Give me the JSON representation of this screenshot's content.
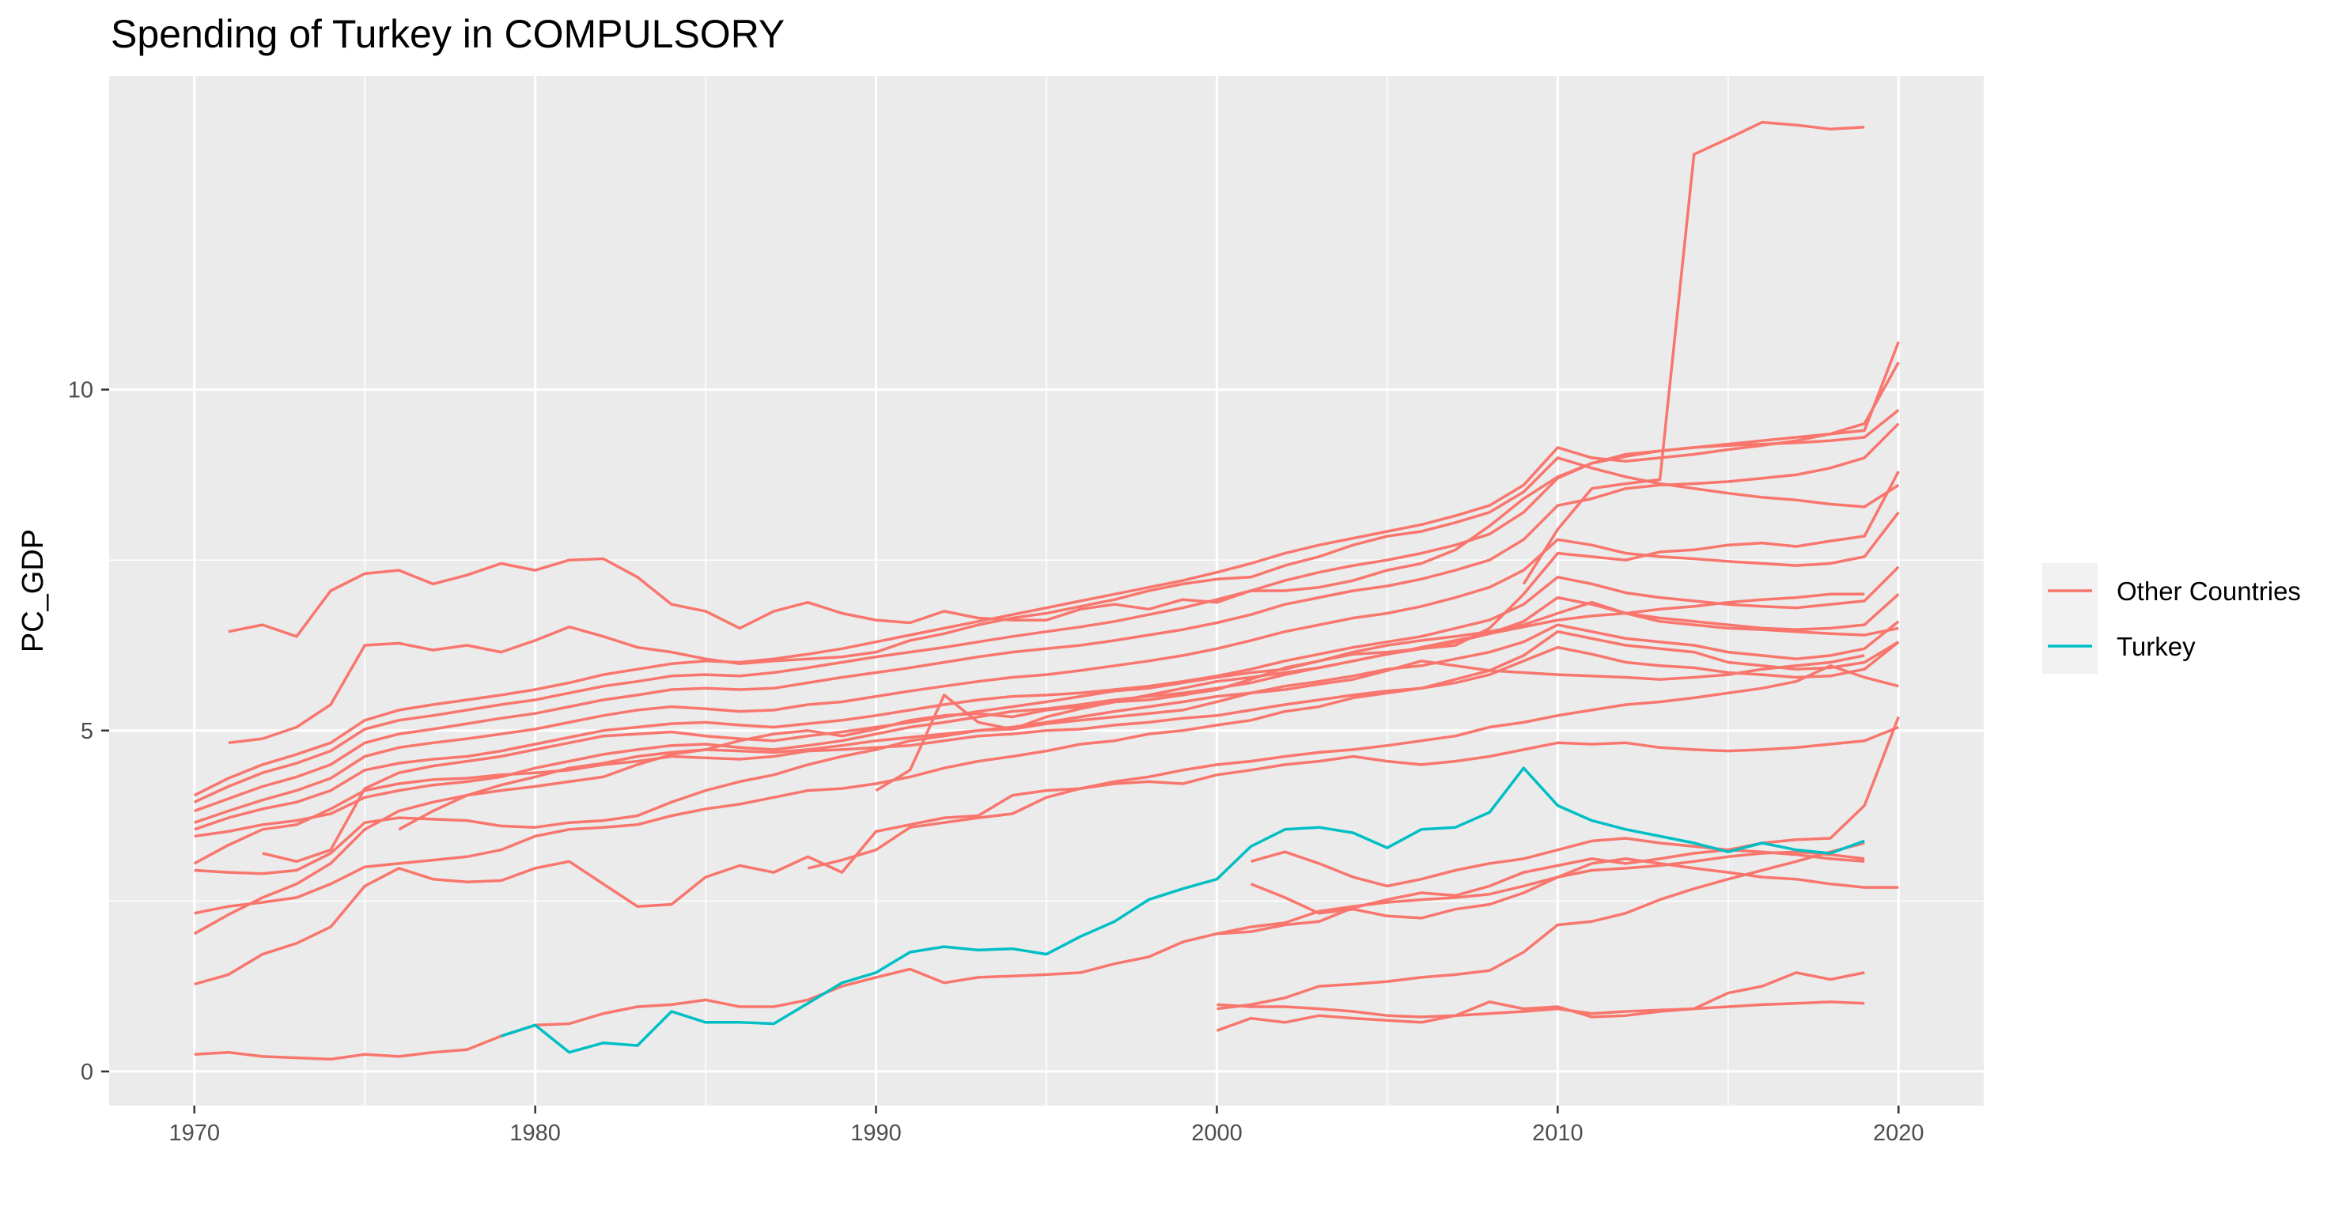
{
  "colors": {
    "other": "#F8766D",
    "turkey": "#00BFC4",
    "panel": "#EBEBEB",
    "grid_major": "#FFFFFF"
  },
  "chart_data": {
    "type": "line",
    "title": "Spending of Turkey in COMPULSORY",
    "xlabel": "",
    "ylabel": "PC_GDP",
    "xlim": [
      1967.5,
      2022.5
    ],
    "ylim": [
      -0.5,
      14.6
    ],
    "x_ticks": [
      1970,
      1980,
      1990,
      2000,
      2010,
      2020
    ],
    "y_ticks": [
      0,
      5,
      10
    ],
    "grid": true,
    "legend_position": "right",
    "legend": [
      {
        "label": "Other Countries",
        "color": "#F8766D"
      },
      {
        "label": "Turkey",
        "color": "#00BFC4"
      }
    ],
    "turkey": {
      "name": "Turkey",
      "x": [
        1979,
        1980,
        1981,
        1982,
        1983,
        1984,
        1985,
        1986,
        1987,
        1988,
        1989,
        1990,
        1991,
        1992,
        1993,
        1994,
        1995,
        1996,
        1997,
        1998,
        1999,
        2000,
        2001,
        2002,
        2003,
        2004,
        2005,
        2006,
        2007,
        2008,
        2009,
        2010,
        2011,
        2012,
        2013,
        2014,
        2015,
        2016,
        2017,
        2018,
        2019
      ],
      "values": [
        0.52,
        0.68,
        0.28,
        0.42,
        0.38,
        0.88,
        0.72,
        0.72,
        0.7,
        1.0,
        1.3,
        1.45,
        1.75,
        1.83,
        1.78,
        1.8,
        1.72,
        1.98,
        2.2,
        2.52,
        2.68,
        2.82,
        3.3,
        3.55,
        3.58,
        3.5,
        3.28,
        3.55,
        3.58,
        3.8,
        4.45,
        3.9,
        3.68,
        3.55,
        3.45,
        3.35,
        3.22,
        3.35,
        3.25,
        3.2,
        3.38
      ]
    },
    "other_countries": [
      {
        "start": 1970,
        "values": [
          0.25,
          0.28,
          0.22,
          0.2,
          0.18,
          0.25,
          0.22,
          0.28,
          0.32,
          0.52,
          0.68,
          0.7,
          0.85,
          0.95,
          0.98,
          1.05,
          0.95,
          0.95,
          1.05,
          1.25,
          1.38,
          1.5,
          1.3,
          1.38,
          1.4,
          1.42,
          1.45,
          1.58,
          1.68,
          1.9,
          2.02,
          2.05,
          2.15,
          2.2,
          2.4,
          2.52,
          2.62,
          2.58,
          2.72,
          2.92,
          3.02,
          3.12,
          3.05,
          3.12,
          3.2,
          3.25,
          3.35,
          3.4,
          3.42,
          3.9,
          5.2
        ]
      },
      {
        "start": 1970,
        "values": [
          1.28,
          1.42,
          1.72,
          1.88,
          2.12,
          2.72,
          2.98,
          2.82,
          2.78,
          2.8,
          2.98,
          3.08,
          2.75,
          2.42,
          2.45,
          2.85,
          3.02,
          2.92,
          3.15,
          2.92,
          3.52,
          3.62,
          3.72,
          3.75,
          4.05,
          4.12,
          4.15,
          4.22,
          4.25,
          4.22,
          4.35,
          4.42,
          4.5,
          4.55,
          4.62,
          4.55,
          4.5,
          4.55,
          4.62,
          4.72,
          4.82,
          4.8,
          4.82,
          4.75,
          4.72,
          4.7,
          4.72,
          4.75,
          4.8,
          4.85,
          5.05
        ]
      },
      {
        "start": 1970,
        "values": [
          2.02,
          2.3,
          2.55,
          2.75,
          3.05,
          3.55,
          3.82,
          3.95,
          4.05,
          4.12,
          4.18,
          4.25,
          4.32,
          4.5,
          4.65,
          4.72,
          4.85,
          4.95,
          5.0,
          4.92,
          5.02,
          5.15,
          5.22,
          5.25,
          5.2,
          5.3,
          5.35,
          5.42,
          5.45,
          5.52,
          5.6,
          5.75,
          5.92,
          6.02,
          6.12,
          6.15,
          6.2,
          6.25,
          6.5,
          7.0,
          7.6,
          7.55,
          7.5,
          7.62,
          7.65,
          7.72,
          7.75,
          7.7,
          7.78,
          7.85,
          8.8
        ]
      },
      {
        "start": 1970,
        "values": [
          2.32,
          2.42,
          2.48,
          2.55,
          2.75,
          3.0,
          3.05,
          3.1,
          3.15,
          3.25,
          3.45,
          3.55,
          3.58,
          3.62,
          3.75,
          3.85,
          3.92,
          4.02,
          4.12,
          4.15,
          4.22,
          4.32,
          4.45,
          4.55,
          4.62,
          4.7,
          4.8,
          4.85,
          4.95,
          5.0,
          5.08,
          5.15,
          5.28,
          5.35,
          5.48,
          5.55,
          5.62,
          5.75,
          5.88,
          6.1,
          6.45,
          6.35,
          6.25,
          6.2,
          6.15,
          6.0,
          5.95,
          5.9,
          5.92,
          6.0,
          6.3
        ]
      },
      {
        "start": 1970,
        "values": [
          2.95,
          2.92,
          2.9,
          2.95,
          3.2,
          3.65,
          3.72,
          3.7,
          3.68,
          3.6,
          3.58,
          3.65,
          3.68,
          3.75,
          3.95,
          4.12,
          4.25,
          4.35,
          4.5,
          4.62,
          4.72,
          4.85,
          4.92,
          5.0,
          5.02,
          5.1,
          5.15,
          5.2,
          5.25,
          5.3,
          5.42,
          5.55,
          5.65,
          5.72,
          5.8,
          5.9,
          5.95,
          6.05,
          6.15,
          6.3,
          6.55,
          6.45,
          6.35,
          6.3,
          6.25,
          6.15,
          6.1,
          6.05,
          6.1,
          6.2,
          6.6
        ]
      },
      {
        "start": 1970,
        "values": [
          3.05,
          3.32,
          3.55,
          3.62,
          3.85,
          4.12,
          4.22,
          4.28,
          4.3,
          4.35,
          4.38,
          4.42,
          4.5,
          4.55,
          4.62,
          4.6,
          4.58,
          4.62,
          4.7,
          4.72,
          4.75,
          4.78,
          4.85,
          4.92,
          4.95,
          5.0,
          5.02,
          5.08,
          5.12,
          5.18,
          5.22,
          5.3,
          5.38,
          5.45,
          5.52,
          5.58,
          5.62,
          5.7,
          5.82,
          6.02,
          6.22,
          6.12,
          6.0,
          5.95,
          5.92,
          5.85,
          5.82,
          5.78,
          5.8,
          5.9,
          6.3
        ]
      },
      {
        "start": 1970,
        "values": [
          3.45,
          3.52,
          3.62,
          3.68,
          3.78,
          4.02,
          4.12,
          4.2,
          4.25,
          4.32,
          4.45,
          4.55,
          4.65,
          4.72,
          4.78,
          4.8,
          4.75,
          4.72,
          4.78,
          4.85,
          4.95,
          5.05,
          5.12,
          5.2,
          5.28,
          5.32,
          5.38,
          5.45,
          5.5,
          5.55,
          5.62,
          5.7,
          5.82,
          5.92,
          6.02,
          6.12,
          6.2,
          6.3,
          6.42,
          6.6,
          6.95,
          6.85,
          6.72,
          6.65,
          6.6,
          6.55,
          6.5,
          6.48,
          6.5,
          6.55,
          7.0
        ]
      },
      {
        "start": 1970,
        "values": [
          3.55,
          3.72,
          3.85,
          3.95,
          4.12,
          4.42,
          4.52,
          4.58,
          4.62,
          4.7,
          4.8,
          4.9,
          5.0,
          5.05,
          5.1,
          5.12,
          5.08,
          5.05,
          5.1,
          5.15,
          5.22,
          5.3,
          5.38,
          5.45,
          5.5,
          5.52,
          5.55,
          5.6,
          5.65,
          5.72,
          5.8,
          5.9,
          6.02,
          6.12,
          6.22,
          6.3,
          6.38,
          6.5,
          6.62,
          6.85,
          7.25,
          7.15,
          7.02,
          6.95,
          6.9,
          6.85,
          6.82,
          6.8,
          6.85,
          6.9,
          7.4
        ]
      },
      {
        "start": 1970,
        "values": [
          3.65,
          3.82,
          3.98,
          4.12,
          4.3,
          4.62,
          4.75,
          4.82,
          4.88,
          4.95,
          5.02,
          5.12,
          5.22,
          5.3,
          5.35,
          5.32,
          5.28,
          5.3,
          5.38,
          5.42,
          5.5,
          5.58,
          5.65,
          5.72,
          5.78,
          5.82,
          5.88,
          5.95,
          6.02,
          6.1,
          6.2,
          6.32,
          6.45,
          6.55,
          6.65,
          6.72,
          6.82,
          6.95,
          7.1,
          7.35,
          7.8,
          7.72,
          7.6,
          7.55,
          7.52,
          7.48,
          7.45,
          7.42,
          7.45,
          7.55,
          8.2
        ]
      },
      {
        "start": 1970,
        "values": [
          3.82,
          4.0,
          4.18,
          4.32,
          4.5,
          4.82,
          4.95,
          5.02,
          5.1,
          5.18,
          5.25,
          5.35,
          5.45,
          5.52,
          5.6,
          5.62,
          5.6,
          5.62,
          5.7,
          5.78,
          5.85,
          5.92,
          6.0,
          6.08,
          6.15,
          6.2,
          6.25,
          6.32,
          6.4,
          6.48,
          6.58,
          6.7,
          6.85,
          6.95,
          7.05,
          7.12,
          7.22,
          7.35,
          7.5,
          7.8,
          8.3,
          8.4,
          8.55,
          8.6,
          8.62,
          8.65,
          8.7,
          8.75,
          8.85,
          9.0,
          9.5
        ]
      },
      {
        "start": 1970,
        "values": [
          3.95,
          4.18,
          4.38,
          4.52,
          4.7,
          5.02,
          5.15,
          5.22,
          5.3,
          5.38,
          5.45,
          5.55,
          5.65,
          5.72,
          5.8,
          5.82,
          5.8,
          5.85,
          5.92,
          6.0,
          6.08,
          6.15,
          6.22,
          6.3,
          6.38,
          6.45,
          6.52,
          6.6,
          6.7,
          6.8,
          6.92,
          7.05,
          7.2,
          7.32,
          7.42,
          7.5,
          7.6,
          7.72,
          7.88,
          8.2,
          8.7,
          8.92,
          9.05,
          9.1,
          9.15,
          9.18,
          9.2,
          9.22,
          9.25,
          9.3,
          9.7
        ]
      },
      {
        "start": 1970,
        "values": [
          4.05,
          4.3,
          4.5,
          4.65,
          4.82,
          5.15,
          5.3,
          5.38,
          5.45,
          5.52,
          5.6,
          5.7,
          5.82,
          5.9,
          5.98,
          6.02,
          6.0,
          6.05,
          6.12,
          6.2,
          6.3,
          6.4,
          6.5,
          6.6,
          6.7,
          6.8,
          6.9,
          7.0,
          7.1,
          7.2,
          7.32,
          7.45,
          7.6,
          7.72,
          7.82,
          7.92,
          8.02,
          8.15,
          8.3,
          8.6,
          9.15,
          9.0,
          8.95,
          9.0,
          9.05,
          9.12,
          9.18,
          9.25,
          9.35,
          9.5,
          10.4
        ]
      },
      {
        "start": 1971,
        "values": [
          6.45,
          6.55,
          6.38,
          7.05,
          7.3,
          7.35,
          7.15,
          7.28,
          7.45,
          7.35,
          7.5,
          7.52,
          7.25,
          6.85,
          6.75,
          6.5,
          6.75,
          6.88,
          6.72,
          6.62,
          6.58,
          6.75,
          6.65,
          6.62,
          6.62,
          6.78,
          6.85,
          6.78,
          6.92,
          6.88,
          7.05,
          7.05,
          7.1,
          7.2,
          7.35,
          7.45,
          7.65,
          8.0,
          8.4,
          8.72,
          8.92,
          9.02,
          9.1,
          9.15,
          9.2,
          9.25,
          9.3,
          9.35,
          9.4,
          10.7
        ]
      },
      {
        "start": 1971,
        "values": [
          4.82,
          4.88,
          5.05,
          5.38,
          6.25,
          6.28,
          6.18,
          6.25,
          6.15,
          6.32,
          6.52,
          6.38,
          6.22,
          6.15,
          6.05,
          5.98,
          6.02,
          6.05,
          6.08,
          6.15,
          6.32,
          6.42,
          6.55,
          6.65,
          6.72,
          6.82,
          6.92,
          7.05,
          7.15,
          7.22,
          7.25,
          7.42,
          7.55,
          7.72,
          7.85,
          7.92,
          8.05,
          8.2,
          8.5,
          9.0,
          8.85,
          8.72,
          8.62,
          8.55,
          8.48,
          8.42,
          8.38,
          8.32,
          8.28,
          8.6
        ]
      },
      {
        "start": 1972,
        "values": [
          3.2,
          3.08,
          3.25,
          4.15,
          4.38,
          4.48,
          4.55,
          4.62,
          4.72,
          4.82,
          4.92,
          4.95,
          4.98,
          4.92,
          4.88,
          4.85,
          4.92,
          4.98,
          5.05,
          5.12,
          5.2,
          5.28,
          5.35,
          5.42,
          5.5,
          5.58,
          5.62,
          5.7,
          5.78,
          5.85,
          5.9,
          6.02,
          6.15,
          6.25,
          6.32,
          6.38,
          6.45,
          6.55,
          6.72,
          6.88,
          6.72,
          6.6,
          6.55,
          6.5,
          6.48,
          6.45,
          6.42,
          6.4,
          6.5
        ]
      },
      {
        "start": 1976,
        "values": [
          3.55,
          3.82,
          4.05,
          4.2,
          4.32,
          4.45,
          4.52,
          4.62,
          4.68,
          4.72,
          4.7,
          4.68,
          4.72,
          4.78,
          4.85,
          4.9,
          4.95,
          5.0,
          5.05,
          5.12,
          5.2,
          5.28,
          5.35,
          5.42,
          5.5,
          5.55,
          5.6,
          5.68,
          5.75,
          5.88,
          6.02,
          5.95,
          5.88,
          5.85,
          5.82,
          5.8,
          5.78,
          5.75,
          5.78,
          5.82,
          5.9,
          5.95,
          6.0,
          6.1
        ]
      },
      {
        "start": 1988,
        "values": [
          2.98,
          3.1,
          3.25,
          3.58,
          3.65,
          3.72,
          3.78,
          4.02,
          4.15,
          4.25,
          4.32,
          4.42,
          4.5,
          4.55,
          4.62,
          4.68,
          4.72,
          4.78,
          4.85,
          4.92,
          5.05,
          5.12,
          5.22,
          5.3,
          5.38,
          5.42,
          5.48,
          5.55,
          5.62,
          5.72,
          5.95,
          5.78,
          5.65
        ]
      },
      {
        "start": 1990,
        "values": [
          4.12,
          4.42,
          5.52,
          5.12,
          5.02,
          5.2,
          5.32,
          5.42,
          5.52,
          5.62,
          5.72,
          5.78,
          5.85,
          5.92,
          6.02,
          6.12,
          6.22,
          6.32,
          6.42,
          6.52,
          6.62,
          6.68,
          6.72,
          6.78,
          6.82,
          6.88,
          6.92,
          6.95,
          7.0,
          7.0
        ]
      },
      {
        "start": 2000,
        "values": [
          0.98,
          0.95,
          0.95,
          0.92,
          0.88,
          0.82,
          0.8,
          0.82,
          0.85,
          0.88,
          0.92,
          0.85,
          0.88,
          0.9,
          0.92,
          0.95,
          0.98,
          1.0,
          1.02,
          1.0
        ]
      },
      {
        "start": 2000,
        "values": [
          0.6,
          0.78,
          0.72,
          0.82,
          0.78,
          0.75,
          0.72,
          0.82,
          1.02,
          0.92,
          0.95,
          0.8,
          0.82,
          0.88,
          0.92,
          1.15,
          1.25,
          1.45,
          1.35,
          1.45
        ]
      },
      {
        "start": 2000,
        "values": [
          0.92,
          0.98,
          1.08,
          1.25,
          1.28,
          1.32,
          1.38,
          1.42,
          1.48,
          1.75,
          2.15,
          2.2,
          2.32,
          2.52,
          2.68,
          2.82,
          2.95,
          3.08,
          3.22,
          3.35
        ]
      },
      {
        "start": 2000,
        "values": [
          2.02,
          2.12,
          2.18,
          2.35,
          2.42,
          2.48,
          2.52,
          2.55,
          2.6,
          2.72,
          2.85,
          2.95,
          2.98,
          3.02,
          3.08,
          3.15,
          3.2,
          3.22,
          3.18,
          3.12
        ]
      },
      {
        "start": 2001,
        "values": [
          2.75,
          2.55,
          2.32,
          2.38,
          2.28,
          2.25,
          2.38,
          2.45,
          2.62,
          2.85,
          3.05,
          3.12,
          3.05,
          2.98,
          2.92,
          2.85,
          2.82,
          2.75,
          2.7,
          2.7
        ]
      },
      {
        "start": 2001,
        "values": [
          3.08,
          3.22,
          3.05,
          2.85,
          2.72,
          2.82,
          2.95,
          3.05,
          3.12,
          3.25,
          3.38,
          3.42,
          3.35,
          3.3,
          3.25,
          3.22,
          3.18,
          3.12,
          3.08
        ]
      },
      {
        "start": 2009,
        "values": [
          7.15,
          7.95,
          8.55,
          8.62,
          8.68,
          13.45,
          13.68,
          13.92,
          13.88,
          13.82,
          13.85
        ]
      }
    ]
  }
}
